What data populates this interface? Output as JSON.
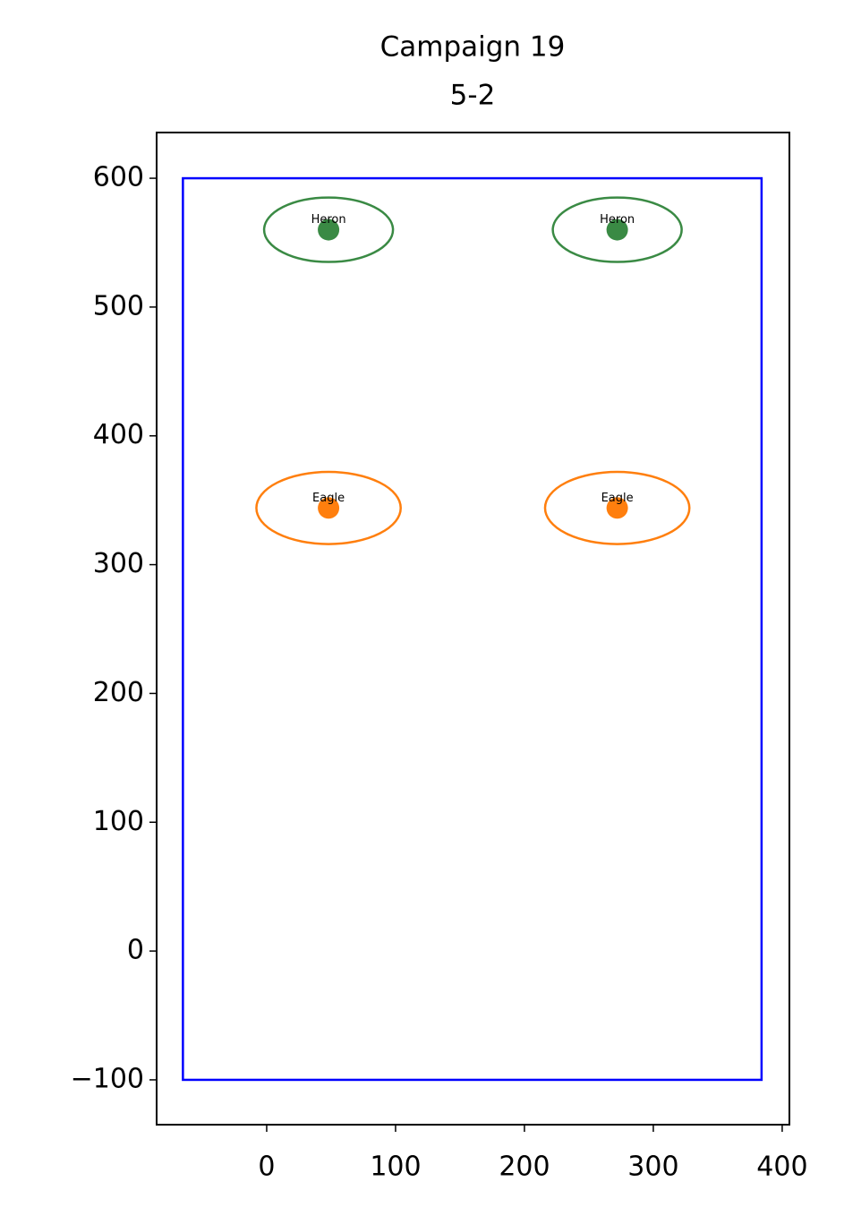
{
  "chart_data": {
    "type": "scatter",
    "title": "Campaign 19",
    "subtitle": "5-2",
    "xlim": [
      -85.4,
      405.6
    ],
    "ylim": [
      -134.8,
      635.5
    ],
    "xticks": [
      0,
      100,
      200,
      300,
      400
    ],
    "yticks": [
      {
        "value": -100,
        "label": "−100"
      },
      0,
      100,
      200,
      300,
      400,
      500,
      600
    ],
    "boundary": {
      "xlim": [
        -65,
        384
      ],
      "ylim": [
        -100,
        600
      ],
      "color": "#0000ff"
    },
    "series": [
      {
        "name": "Heron",
        "color": "#3a8a44",
        "x": [
          48,
          272
        ],
        "y": [
          560,
          560
        ],
        "ellipse_width": 100,
        "ellipse_height": 50
      },
      {
        "name": "Eagle",
        "color": "#ff7f0e",
        "x": [
          48,
          272
        ],
        "y": [
          344,
          344
        ],
        "ellipse_width": 112,
        "ellipse_height": 56
      }
    ]
  }
}
